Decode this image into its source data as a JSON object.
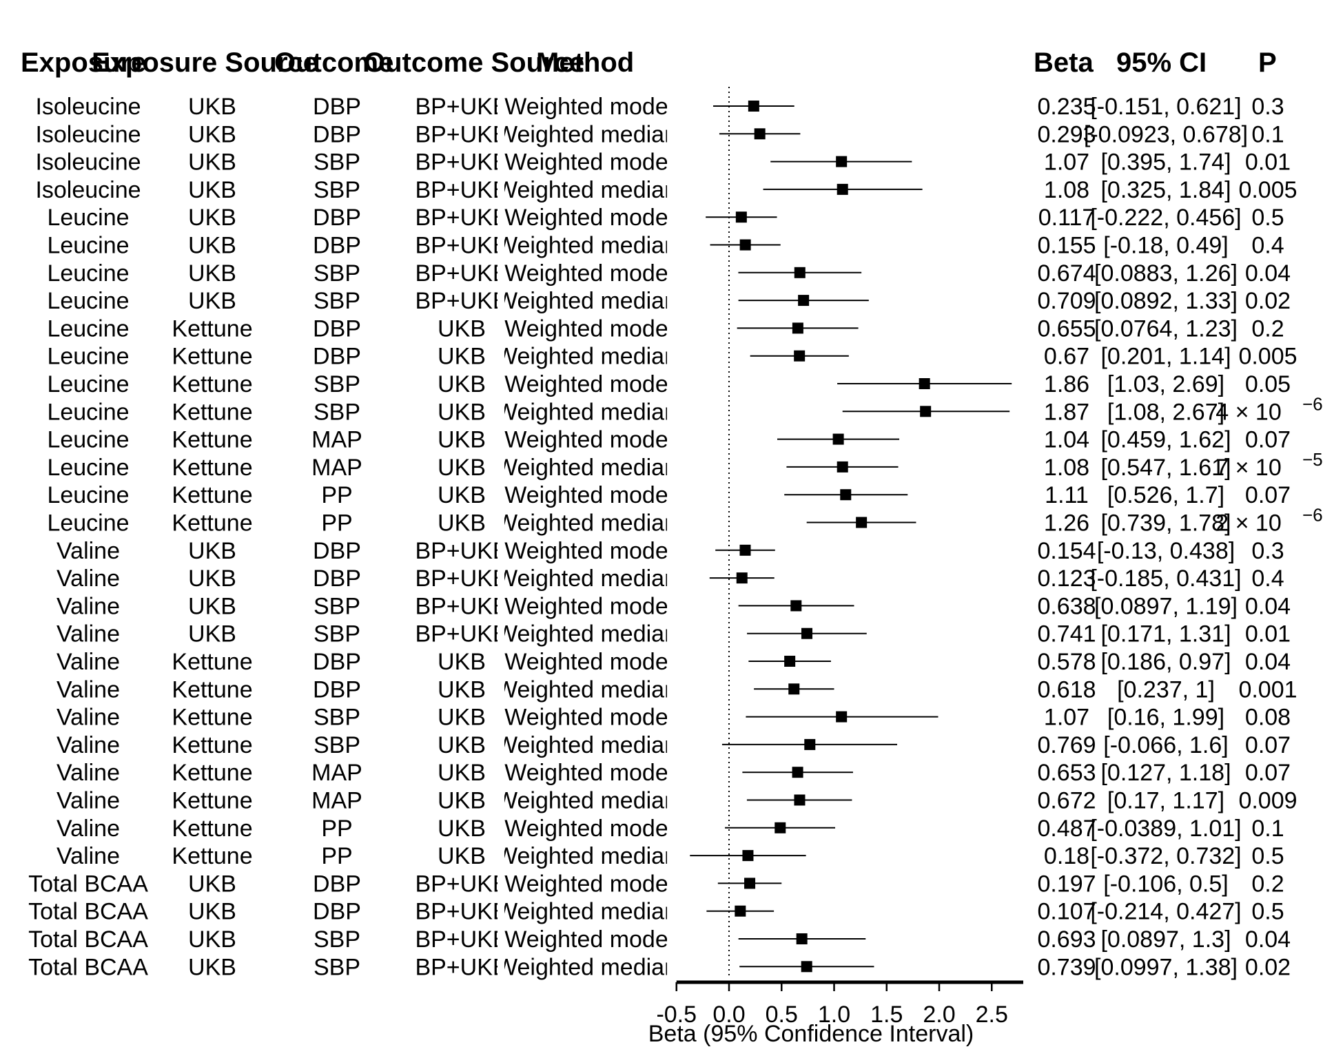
{
  "chart_data": {
    "type": "forest",
    "headers": [
      "Exposure",
      "Exposure Source",
      "Outcome",
      "Outcome Source",
      "Method",
      "Beta",
      "95% CI",
      "P"
    ],
    "xlabel": "Beta (95% Confidence Interval)",
    "xlim": [
      -0.5,
      2.8
    ],
    "xticks": [
      -0.5,
      0.0,
      0.5,
      1.0,
      1.5,
      2.0,
      2.5
    ],
    "xtick_labels": [
      "-0.5",
      "0.0",
      "0.5",
      "1.0",
      "1.5",
      "2.0",
      "2.5"
    ],
    "reference_line": 0,
    "rows": [
      {
        "exposure": "Isoleucine",
        "exposure_source": "UKB",
        "outcome": "DBP",
        "outcome_source": "BP+UKB",
        "method": "Weighted mode",
        "beta": 0.235,
        "ci_low": -0.151,
        "ci_high": 0.621,
        "beta_text": "0.235",
        "ci_text": "[-0.151, 0.621]",
        "p_text": "0.3"
      },
      {
        "exposure": "Isoleucine",
        "exposure_source": "UKB",
        "outcome": "DBP",
        "outcome_source": "BP+UKB",
        "method": "Weighted median",
        "beta": 0.293,
        "ci_low": -0.0923,
        "ci_high": 0.678,
        "beta_text": "0.293",
        "ci_text": "[-0.0923, 0.678]",
        "p_text": "0.1"
      },
      {
        "exposure": "Isoleucine",
        "exposure_source": "UKB",
        "outcome": "SBP",
        "outcome_source": "BP+UKB",
        "method": "Weighted mode",
        "beta": 1.07,
        "ci_low": 0.395,
        "ci_high": 1.74,
        "beta_text": "1.07",
        "ci_text": "[0.395, 1.74]",
        "p_text": "0.01"
      },
      {
        "exposure": "Isoleucine",
        "exposure_source": "UKB",
        "outcome": "SBP",
        "outcome_source": "BP+UKB",
        "method": "Weighted median",
        "beta": 1.08,
        "ci_low": 0.325,
        "ci_high": 1.84,
        "beta_text": "1.08",
        "ci_text": "[0.325, 1.84]",
        "p_text": "0.005"
      },
      {
        "exposure": "Leucine",
        "exposure_source": "UKB",
        "outcome": "DBP",
        "outcome_source": "BP+UKB",
        "method": "Weighted mode",
        "beta": 0.117,
        "ci_low": -0.222,
        "ci_high": 0.456,
        "beta_text": "0.117",
        "ci_text": "[-0.222, 0.456]",
        "p_text": "0.5"
      },
      {
        "exposure": "Leucine",
        "exposure_source": "UKB",
        "outcome": "DBP",
        "outcome_source": "BP+UKB",
        "method": "Weighted median",
        "beta": 0.155,
        "ci_low": -0.18,
        "ci_high": 0.49,
        "beta_text": "0.155",
        "ci_text": "[-0.18, 0.49]",
        "p_text": "0.4"
      },
      {
        "exposure": "Leucine",
        "exposure_source": "UKB",
        "outcome": "SBP",
        "outcome_source": "BP+UKB",
        "method": "Weighted mode",
        "beta": 0.674,
        "ci_low": 0.0883,
        "ci_high": 1.26,
        "beta_text": "0.674",
        "ci_text": "[0.0883, 1.26]",
        "p_text": "0.04"
      },
      {
        "exposure": "Leucine",
        "exposure_source": "UKB",
        "outcome": "SBP",
        "outcome_source": "BP+UKB",
        "method": "Weighted median",
        "beta": 0.709,
        "ci_low": 0.0892,
        "ci_high": 1.33,
        "beta_text": "0.709",
        "ci_text": "[0.0892, 1.33]",
        "p_text": "0.02"
      },
      {
        "exposure": "Leucine",
        "exposure_source": "Kettune",
        "outcome": "DBP",
        "outcome_source": "UKB",
        "method": "Weighted mode",
        "beta": 0.655,
        "ci_low": 0.0764,
        "ci_high": 1.23,
        "beta_text": "0.655",
        "ci_text": "[0.0764, 1.23]",
        "p_text": "0.2"
      },
      {
        "exposure": "Leucine",
        "exposure_source": "Kettune",
        "outcome": "DBP",
        "outcome_source": "UKB",
        "method": "Weighted median",
        "beta": 0.67,
        "ci_low": 0.201,
        "ci_high": 1.14,
        "beta_text": "0.67",
        "ci_text": "[0.201, 1.14]",
        "p_text": "0.005"
      },
      {
        "exposure": "Leucine",
        "exposure_source": "Kettune",
        "outcome": "SBP",
        "outcome_source": "UKB",
        "method": "Weighted mode",
        "beta": 1.86,
        "ci_low": 1.03,
        "ci_high": 2.69,
        "beta_text": "1.86",
        "ci_text": "[1.03, 2.69]",
        "p_text": "0.05"
      },
      {
        "exposure": "Leucine",
        "exposure_source": "Kettune",
        "outcome": "SBP",
        "outcome_source": "UKB",
        "method": "Weighted median",
        "beta": 1.87,
        "ci_low": 1.08,
        "ci_high": 2.67,
        "beta_text": "1.87",
        "ci_text": "[1.08, 2.67]",
        "p_text": "4 × 10",
        "p_exp": "−6"
      },
      {
        "exposure": "Leucine",
        "exposure_source": "Kettune",
        "outcome": "MAP",
        "outcome_source": "UKB",
        "method": "Weighted mode",
        "beta": 1.04,
        "ci_low": 0.459,
        "ci_high": 1.62,
        "beta_text": "1.04",
        "ci_text": "[0.459, 1.62]",
        "p_text": "0.07"
      },
      {
        "exposure": "Leucine",
        "exposure_source": "Kettune",
        "outcome": "MAP",
        "outcome_source": "UKB",
        "method": "Weighted median",
        "beta": 1.08,
        "ci_low": 0.547,
        "ci_high": 1.61,
        "beta_text": "1.08",
        "ci_text": "[0.547, 1.61]",
        "p_text": "7 × 10",
        "p_exp": "−5"
      },
      {
        "exposure": "Leucine",
        "exposure_source": "Kettune",
        "outcome": "PP",
        "outcome_source": "UKB",
        "method": "Weighted mode",
        "beta": 1.11,
        "ci_low": 0.526,
        "ci_high": 1.7,
        "beta_text": "1.11",
        "ci_text": "[0.526, 1.7]",
        "p_text": "0.07"
      },
      {
        "exposure": "Leucine",
        "exposure_source": "Kettune",
        "outcome": "PP",
        "outcome_source": "UKB",
        "method": "Weighted median",
        "beta": 1.26,
        "ci_low": 0.739,
        "ci_high": 1.78,
        "beta_text": "1.26",
        "ci_text": "[0.739, 1.78]",
        "p_text": "2 × 10",
        "p_exp": "−6"
      },
      {
        "exposure": "Valine",
        "exposure_source": "UKB",
        "outcome": "DBP",
        "outcome_source": "BP+UKB",
        "method": "Weighted mode",
        "beta": 0.154,
        "ci_low": -0.13,
        "ci_high": 0.438,
        "beta_text": "0.154",
        "ci_text": "[-0.13, 0.438]",
        "p_text": "0.3"
      },
      {
        "exposure": "Valine",
        "exposure_source": "UKB",
        "outcome": "DBP",
        "outcome_source": "BP+UKB",
        "method": "Weighted median",
        "beta": 0.123,
        "ci_low": -0.185,
        "ci_high": 0.431,
        "beta_text": "0.123",
        "ci_text": "[-0.185, 0.431]",
        "p_text": "0.4"
      },
      {
        "exposure": "Valine",
        "exposure_source": "UKB",
        "outcome": "SBP",
        "outcome_source": "BP+UKB",
        "method": "Weighted mode",
        "beta": 0.638,
        "ci_low": 0.0897,
        "ci_high": 1.19,
        "beta_text": "0.638",
        "ci_text": "[0.0897, 1.19]",
        "p_text": "0.04"
      },
      {
        "exposure": "Valine",
        "exposure_source": "UKB",
        "outcome": "SBP",
        "outcome_source": "BP+UKB",
        "method": "Weighted median",
        "beta": 0.741,
        "ci_low": 0.171,
        "ci_high": 1.31,
        "beta_text": "0.741",
        "ci_text": "[0.171, 1.31]",
        "p_text": "0.01"
      },
      {
        "exposure": "Valine",
        "exposure_source": "Kettune",
        "outcome": "DBP",
        "outcome_source": "UKB",
        "method": "Weighted mode",
        "beta": 0.578,
        "ci_low": 0.186,
        "ci_high": 0.97,
        "beta_text": "0.578",
        "ci_text": "[0.186, 0.97]",
        "p_text": "0.04"
      },
      {
        "exposure": "Valine",
        "exposure_source": "Kettune",
        "outcome": "DBP",
        "outcome_source": "UKB",
        "method": "Weighted median",
        "beta": 0.618,
        "ci_low": 0.237,
        "ci_high": 1.0,
        "beta_text": "0.618",
        "ci_text": "[0.237, 1]",
        "p_text": "0.001"
      },
      {
        "exposure": "Valine",
        "exposure_source": "Kettune",
        "outcome": "SBP",
        "outcome_source": "UKB",
        "method": "Weighted mode",
        "beta": 1.07,
        "ci_low": 0.16,
        "ci_high": 1.99,
        "beta_text": "1.07",
        "ci_text": "[0.16, 1.99]",
        "p_text": "0.08"
      },
      {
        "exposure": "Valine",
        "exposure_source": "Kettune",
        "outcome": "SBP",
        "outcome_source": "UKB",
        "method": "Weighted median",
        "beta": 0.769,
        "ci_low": -0.066,
        "ci_high": 1.6,
        "beta_text": "0.769",
        "ci_text": "[-0.066, 1.6]",
        "p_text": "0.07"
      },
      {
        "exposure": "Valine",
        "exposure_source": "Kettune",
        "outcome": "MAP",
        "outcome_source": "UKB",
        "method": "Weighted mode",
        "beta": 0.653,
        "ci_low": 0.127,
        "ci_high": 1.18,
        "beta_text": "0.653",
        "ci_text": "[0.127, 1.18]",
        "p_text": "0.07"
      },
      {
        "exposure": "Valine",
        "exposure_source": "Kettune",
        "outcome": "MAP",
        "outcome_source": "UKB",
        "method": "Weighted median",
        "beta": 0.672,
        "ci_low": 0.17,
        "ci_high": 1.17,
        "beta_text": "0.672",
        "ci_text": "[0.17, 1.17]",
        "p_text": "0.009"
      },
      {
        "exposure": "Valine",
        "exposure_source": "Kettune",
        "outcome": "PP",
        "outcome_source": "UKB",
        "method": "Weighted mode",
        "beta": 0.487,
        "ci_low": -0.0389,
        "ci_high": 1.01,
        "beta_text": "0.487",
        "ci_text": "[-0.0389, 1.01]",
        "p_text": "0.1"
      },
      {
        "exposure": "Valine",
        "exposure_source": "Kettune",
        "outcome": "PP",
        "outcome_source": "UKB",
        "method": "Weighted median",
        "beta": 0.18,
        "ci_low": -0.372,
        "ci_high": 0.732,
        "beta_text": "0.18",
        "ci_text": "[-0.372, 0.732]",
        "p_text": "0.5"
      },
      {
        "exposure": "Total BCAA",
        "exposure_source": "UKB",
        "outcome": "DBP",
        "outcome_source": "BP+UKB",
        "method": "Weighted mode",
        "beta": 0.197,
        "ci_low": -0.106,
        "ci_high": 0.5,
        "beta_text": "0.197",
        "ci_text": "[-0.106, 0.5]",
        "p_text": "0.2"
      },
      {
        "exposure": "Total BCAA",
        "exposure_source": "UKB",
        "outcome": "DBP",
        "outcome_source": "BP+UKB",
        "method": "Weighted median",
        "beta": 0.107,
        "ci_low": -0.214,
        "ci_high": 0.427,
        "beta_text": "0.107",
        "ci_text": "[-0.214, 0.427]",
        "p_text": "0.5"
      },
      {
        "exposure": "Total BCAA",
        "exposure_source": "UKB",
        "outcome": "SBP",
        "outcome_source": "BP+UKB",
        "method": "Weighted mode",
        "beta": 0.693,
        "ci_low": 0.0897,
        "ci_high": 1.3,
        "beta_text": "0.693",
        "ci_text": "[0.0897, 1.3]",
        "p_text": "0.04"
      },
      {
        "exposure": "Total BCAA",
        "exposure_source": "UKB",
        "outcome": "SBP",
        "outcome_source": "BP+UKB",
        "method": "Weighted median",
        "beta": 0.739,
        "ci_low": 0.0997,
        "ci_high": 1.38,
        "beta_text": "0.739",
        "ci_text": "[0.0997, 1.38]",
        "p_text": "0.02"
      }
    ]
  }
}
